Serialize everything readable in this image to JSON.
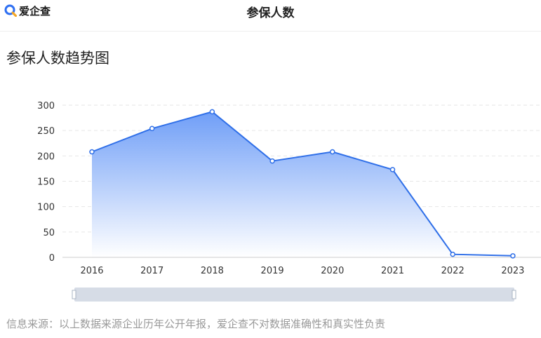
{
  "header": {
    "logo_text": "爱企查",
    "title": "参保人数"
  },
  "chart_heading": "参保人数趋势图",
  "footer_note": "信息来源：以上数据来源企业历年公开年报，爱企查不对数据准确性和真实性负责",
  "colors": {
    "line": "#2f6fe8",
    "area_top": "#6f9ef7",
    "area_bottom": "#ffffff",
    "slider": "#d6dce6",
    "logo_blue": "#2e6ff2",
    "logo_orange": "#f5a623"
  },
  "chart_data": {
    "type": "area",
    "x": [
      "2016",
      "2017",
      "2018",
      "2019",
      "2020",
      "2021",
      "2022",
      "2023"
    ],
    "series": [
      {
        "values": [
          208,
          254,
          287,
          190,
          208,
          173,
          6,
          3
        ]
      }
    ],
    "yticks": [
      "0",
      "50",
      "100",
      "150",
      "200",
      "250",
      "300"
    ],
    "ylim": [
      0,
      300
    ],
    "grid": true,
    "markers": true,
    "data_zoom": true
  }
}
